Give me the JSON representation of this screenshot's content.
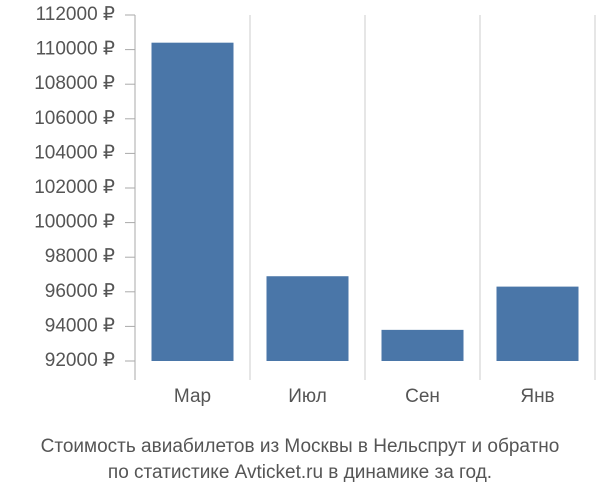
{
  "chart_data": {
    "type": "bar",
    "title": [
      "Стоимость авиабилетов из Москвы в Нельспрут и обратно",
      "по статистике Avticket.ru в динамике за год."
    ],
    "categories": [
      "Мар",
      "Июл",
      "Сен",
      "Янв"
    ],
    "values": [
      110400,
      96900,
      93800,
      96300
    ],
    "color": "#4a76a8",
    "ylim": [
      92000,
      112000
    ],
    "yticks": [
      {
        "value": 92000,
        "label": "92000 ₽"
      },
      {
        "value": 94000,
        "label": "94000 ₽"
      },
      {
        "value": 96000,
        "label": "96000 ₽"
      },
      {
        "value": 98000,
        "label": "98000 ₽"
      },
      {
        "value": 100000,
        "label": "100000 ₽"
      },
      {
        "value": 102000,
        "label": "102000 ₽"
      },
      {
        "value": 104000,
        "label": "104000 ₽"
      },
      {
        "value": 106000,
        "label": "106000 ₽"
      },
      {
        "value": 108000,
        "label": "108000 ₽"
      },
      {
        "value": 110000,
        "label": "110000 ₽"
      },
      {
        "value": 112000,
        "label": "112000 ₽"
      }
    ],
    "grid": "x"
  }
}
